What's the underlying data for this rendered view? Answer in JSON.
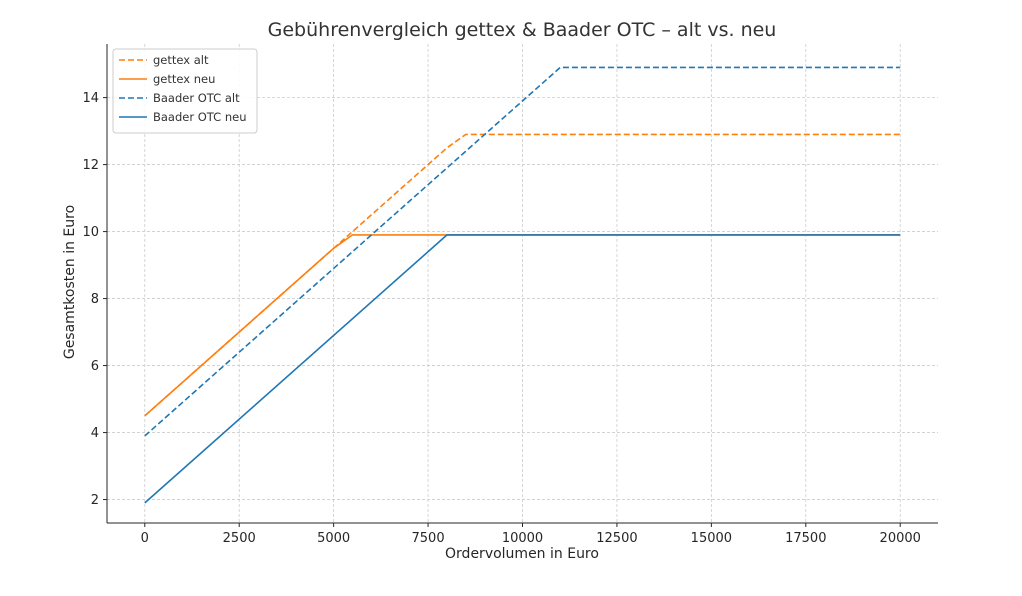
{
  "chart_data": {
    "type": "line",
    "title": "Gebührenvergleich gettex & Baader OTC – alt vs. neu",
    "xlabel": "Ordervolumen in Euro",
    "ylabel": "Gesamtkosten in Euro",
    "xlim": [
      -1000,
      21000
    ],
    "ylim": [
      1.3,
      15.6
    ],
    "xticks": [
      0,
      2500,
      5000,
      7500,
      10000,
      12500,
      15000,
      17500,
      20000
    ],
    "yticks": [
      2,
      4,
      6,
      8,
      10,
      12,
      14
    ],
    "grid": true,
    "legend_position": "top-left",
    "series": [
      {
        "name": "gettex alt",
        "color": "#ff7f0e",
        "dash": "dashed",
        "x": [
          0,
          5000,
          5100,
          8000,
          8500,
          20000
        ],
        "y": [
          4.5,
          9.5,
          9.6,
          12.5,
          12.9,
          12.9
        ]
      },
      {
        "name": "gettex neu",
        "color": "#ff7f0e",
        "dash": "solid",
        "x": [
          0,
          5000,
          5500,
          20000
        ],
        "y": [
          4.5,
          9.5,
          9.9,
          9.9
        ]
      },
      {
        "name": "Baader OTC alt",
        "color": "#1f77b4",
        "dash": "dashed",
        "x": [
          0,
          11000,
          20000
        ],
        "y": [
          3.9,
          14.9,
          14.9
        ]
      },
      {
        "name": "Baader OTC neu",
        "color": "#1f77b4",
        "dash": "solid",
        "x": [
          0,
          8000,
          20000
        ],
        "y": [
          1.9,
          9.9,
          9.9
        ]
      }
    ]
  }
}
